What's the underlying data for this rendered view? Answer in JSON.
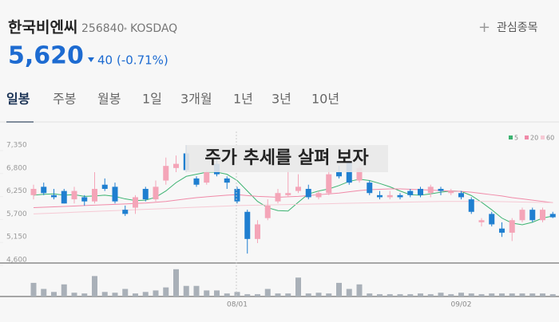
{
  "header": {
    "name": "한국비엔씨",
    "code": "256840",
    "market": "KOSDAQ",
    "watch": "관심종목",
    "price": "5,620",
    "change": "40",
    "change_pct": "(-0.71%)"
  },
  "tabs": [
    "일봉",
    "주봉",
    "월봉",
    "1일",
    "3개월",
    "1년",
    "3년",
    "10년"
  ],
  "overlay": "주가 추세를 살펴 보자",
  "chart_data": {
    "type": "candlestick",
    "categories": [
      null,
      null,
      null,
      null,
      null,
      null,
      null,
      null,
      null,
      null,
      null,
      null,
      null,
      null,
      null,
      null,
      null,
      null,
      null,
      null,
      "08/01",
      null,
      null,
      null,
      null,
      null,
      null,
      null,
      null,
      null,
      null,
      null,
      null,
      null,
      null,
      null,
      null,
      null,
      null,
      null,
      null,
      null,
      "09/02",
      null,
      null,
      null,
      null,
      null,
      null,
      null,
      null,
      null
    ],
    "open": [
      6150,
      6350,
      6150,
      6250,
      6050,
      6100,
      6000,
      6400,
      6350,
      5800,
      5850,
      6300,
      6050,
      6500,
      6800,
      7150,
      6550,
      6450,
      6900,
      6550,
      6300,
      5750,
      5100,
      5600,
      6000,
      6150,
      6250,
      6300,
      6100,
      6200,
      6700,
      6950,
      6500,
      6450,
      6150,
      6100,
      6150,
      6250,
      6300,
      6200,
      6300,
      6200,
      6200,
      6050,
      5500,
      5700,
      5350,
      5250,
      5550,
      5800,
      5550,
      5700
    ],
    "high": [
      6400,
      6450,
      6300,
      6300,
      6350,
      6150,
      6700,
      6550,
      6450,
      5900,
      6150,
      6350,
      6500,
      7050,
      7100,
      7350,
      6600,
      6750,
      7100,
      6600,
      6350,
      5800,
      5550,
      6050,
      6300,
      6750,
      6650,
      6400,
      6250,
      6850,
      6850,
      7000,
      6850,
      6500,
      6250,
      6250,
      6200,
      6300,
      6350,
      6400,
      6350,
      6300,
      6250,
      6100,
      5600,
      5750,
      5500,
      5600,
      5850,
      5850,
      5850,
      5750
    ],
    "low": [
      6050,
      6150,
      6050,
      5950,
      5950,
      5900,
      5950,
      6250,
      5950,
      5650,
      5700,
      6000,
      6000,
      6400,
      6700,
      6700,
      6350,
      6400,
      6600,
      6300,
      5950,
      4750,
      5000,
      5550,
      5950,
      6100,
      6200,
      6050,
      6050,
      6150,
      6550,
      6400,
      6450,
      6150,
      6050,
      6050,
      6050,
      6100,
      6100,
      6100,
      6150,
      6150,
      6050,
      5700,
      5400,
      5400,
      5150,
      5050,
      5500,
      5500,
      5500,
      5600
    ],
    "close": [
      6300,
      6200,
      6100,
      5950,
      6250,
      6000,
      6300,
      6300,
      6000,
      5700,
      6100,
      6050,
      6350,
      6850,
      6900,
      6750,
      6400,
      6700,
      6650,
      6450,
      6000,
      5100,
      5450,
      5900,
      6200,
      6200,
      6350,
      6100,
      6200,
      6650,
      6600,
      6450,
      6800,
      6200,
      6100,
      6150,
      6100,
      6150,
      6150,
      6350,
      6250,
      6250,
      6100,
      5750,
      5550,
      5450,
      5250,
      5550,
      5800,
      5550,
      5800,
      5620
    ],
    "up_color": "#f4a5b8",
    "down_color": "#1f7fd0",
    "ma": [
      {
        "name": "5",
        "color": "#3cb371",
        "values": [
          6150,
          6170,
          6180,
          6150,
          6160,
          6120,
          6130,
          6150,
          6120,
          6060,
          6020,
          6030,
          6100,
          6250,
          6450,
          6600,
          6650,
          6700,
          6700,
          6650,
          6500,
          6250,
          6000,
          5850,
          5780,
          5770,
          5980,
          6180,
          6250,
          6300,
          6380,
          6480,
          6530,
          6500,
          6430,
          6350,
          6250,
          6160,
          6150,
          6180,
          6220,
          6250,
          6240,
          6140,
          5980,
          5800,
          5600,
          5480,
          5440,
          5500,
          5600,
          5650
        ]
      },
      {
        "name": "20",
        "color": "#f08aa8",
        "values": [
          5850,
          5860,
          5870,
          5880,
          5890,
          5900,
          5910,
          5920,
          5930,
          5940,
          5950,
          5960,
          5980,
          6000,
          6030,
          6060,
          6090,
          6110,
          6130,
          6150,
          6160,
          6140,
          6120,
          6110,
          6100,
          6110,
          6120,
          6140,
          6160,
          6180,
          6200,
          6230,
          6260,
          6280,
          6290,
          6300,
          6300,
          6290,
          6280,
          6270,
          6260,
          6250,
          6240,
          6220,
          6190,
          6160,
          6130,
          6090,
          6060,
          6030,
          6000,
          5970
        ]
      },
      {
        "name": "60",
        "color": "#f6c9d4",
        "values": [
          5700,
          5710,
          5720,
          5730,
          5740,
          5750,
          5760,
          5770,
          5780,
          5790,
          5800,
          5810,
          5820,
          5830,
          5840,
          5850,
          5860,
          5870,
          5880,
          5890,
          5900,
          5905,
          5910,
          5915,
          5920,
          5925,
          5930,
          5935,
          5940,
          5945,
          5950,
          5955,
          5960,
          5965,
          5970,
          5975,
          5980,
          5985,
          5990,
          5995,
          6000,
          6000,
          6000,
          6000,
          6000,
          6000,
          5995,
          5990,
          5985,
          5980,
          5975,
          5970
        ]
      }
    ],
    "ylim": [
      4600,
      7350
    ],
    "yticks": [
      {
        "value": 4600,
        "label": "4,600"
      },
      {
        "value": 5150,
        "label": "5,150"
      },
      {
        "value": 5700,
        "label": "5,700"
      },
      {
        "value": 6250,
        "label": "6,250"
      },
      {
        "value": 6800,
        "label": "6,800"
      },
      {
        "value": 7350,
        "label": "7,350"
      }
    ],
    "volume": [
      18,
      10,
      6,
      16,
      5,
      4,
      27,
      6,
      5,
      10,
      4,
      6,
      8,
      12,
      36,
      14,
      14,
      8,
      8,
      4,
      6,
      3,
      3,
      10,
      4,
      4,
      25,
      4,
      5,
      4,
      18,
      10,
      16,
      4,
      3,
      3,
      3,
      3,
      4,
      3,
      5,
      3,
      5,
      4,
      3,
      4,
      4,
      4,
      4,
      4,
      4,
      3
    ],
    "volume_ylim": [
      0,
      40
    ],
    "volume_color": "#a9b0b8"
  }
}
